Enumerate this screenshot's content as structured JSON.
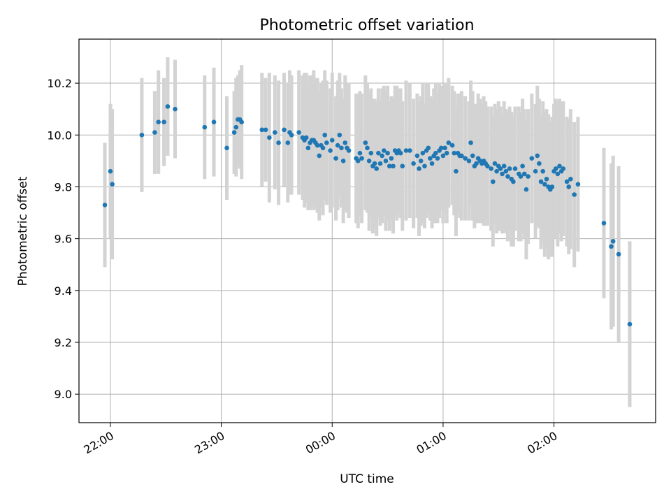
{
  "chart_data": {
    "type": "scatter",
    "title": "Photometric offset variation",
    "xlabel": "UTC time",
    "ylabel": "Photometric offset",
    "x_unit": "UTC clock time (hh:mm)",
    "xlim": [
      "21:43",
      "02:55"
    ],
    "ylim": [
      8.89,
      10.37
    ],
    "xticks": [
      "22:00",
      "23:00",
      "00:00",
      "01:00",
      "02:00"
    ],
    "yticks": [
      "9.0",
      "9.2",
      "9.4",
      "9.6",
      "9.8",
      "10.0",
      "10.2"
    ],
    "grid": true,
    "legend": "none",
    "colors": {
      "point": "#1f77b4",
      "errorbar": "#d3d3d3",
      "grid": "#b0b0b0"
    },
    "series": [
      {
        "points": [
          {
            "x": "21:57",
            "y": 9.73,
            "err": 0.24
          },
          {
            "x": "22:00",
            "y": 9.86,
            "err": 0.26
          },
          {
            "x": "22:01",
            "y": 9.81,
            "err": 0.29
          },
          {
            "x": "22:17",
            "y": 10.0,
            "err": 0.22
          },
          {
            "x": "22:24",
            "y": 10.01,
            "err": 0.16
          },
          {
            "x": "22:26",
            "y": 10.05,
            "err": 0.2
          },
          {
            "x": "22:29",
            "y": 10.05,
            "err": 0.17
          },
          {
            "x": "22:31",
            "y": 10.11,
            "err": 0.19
          },
          {
            "x": "22:35",
            "y": 10.1,
            "err": 0.19
          },
          {
            "x": "22:51",
            "y": 10.03,
            "err": 0.2
          },
          {
            "x": "22:56",
            "y": 10.05,
            "err": 0.21
          },
          {
            "x": "23:03",
            "y": 9.95,
            "err": 0.2
          },
          {
            "x": "23:07",
            "y": 10.01,
            "err": 0.16
          },
          {
            "x": "23:08",
            "y": 10.03,
            "err": 0.19
          },
          {
            "x": "23:09",
            "y": 10.06,
            "err": 0.17
          },
          {
            "x": "23:10",
            "y": 10.06,
            "err": 0.19
          },
          {
            "x": "23:11",
            "y": 10.05,
            "err": 0.22
          },
          {
            "x": "23:22",
            "y": 10.02,
            "err": 0.22
          },
          {
            "x": "23:24",
            "y": 10.02,
            "err": 0.2
          },
          {
            "x": "23:26",
            "y": 9.99,
            "err": 0.25
          },
          {
            "x": "23:29",
            "y": 10.01,
            "err": 0.22
          },
          {
            "x": "23:31",
            "y": 9.97,
            "err": 0.24
          },
          {
            "x": "23:34",
            "y": 10.02,
            "err": 0.22
          },
          {
            "x": "23:36",
            "y": 9.97,
            "err": 0.23
          },
          {
            "x": "23:37",
            "y": 10.01,
            "err": 0.24
          },
          {
            "x": "23:38",
            "y": 10.0,
            "err": 0.23
          },
          {
            "x": "23:42",
            "y": 10.01,
            "err": 0.24
          },
          {
            "x": "23:44",
            "y": 9.99,
            "err": 0.24
          },
          {
            "x": "23:45",
            "y": 9.98,
            "err": 0.26
          },
          {
            "x": "23:46",
            "y": 9.99,
            "err": 0.25
          },
          {
            "x": "23:47",
            "y": 9.95,
            "err": 0.24
          },
          {
            "x": "23:48",
            "y": 9.97,
            "err": 0.26
          },
          {
            "x": "23:49",
            "y": 9.98,
            "err": 0.25
          },
          {
            "x": "23:50",
            "y": 9.98,
            "err": 0.27
          },
          {
            "x": "23:51",
            "y": 9.97,
            "err": 0.25
          },
          {
            "x": "23:52",
            "y": 9.96,
            "err": 0.26
          },
          {
            "x": "23:53",
            "y": 9.92,
            "err": 0.25
          },
          {
            "x": "23:54",
            "y": 9.96,
            "err": 0.24
          },
          {
            "x": "23:55",
            "y": 9.95,
            "err": 0.26
          },
          {
            "x": "23:56",
            "y": 10.0,
            "err": 0.25
          },
          {
            "x": "23:57",
            "y": 9.97,
            "err": 0.24
          },
          {
            "x": "23:59",
            "y": 9.94,
            "err": 0.24
          },
          {
            "x": "00:00",
            "y": 9.98,
            "err": 0.26
          },
          {
            "x": "00:02",
            "y": 9.91,
            "err": 0.24
          },
          {
            "x": "00:03",
            "y": 9.96,
            "err": 0.25
          },
          {
            "x": "00:04",
            "y": 10.0,
            "err": 0.24
          },
          {
            "x": "00:05",
            "y": 9.95,
            "err": 0.23
          },
          {
            "x": "00:06",
            "y": 9.9,
            "err": 0.24
          },
          {
            "x": "00:07",
            "y": 9.97,
            "err": 0.26
          },
          {
            "x": "00:08",
            "y": 9.95,
            "err": 0.25
          },
          {
            "x": "00:09",
            "y": 9.94,
            "err": 0.26
          },
          {
            "x": "00:13",
            "y": 9.91,
            "err": 0.25
          },
          {
            "x": "00:14",
            "y": 9.9,
            "err": 0.26
          },
          {
            "x": "00:15",
            "y": 9.93,
            "err": 0.24
          },
          {
            "x": "00:16",
            "y": 9.91,
            "err": 0.25
          },
          {
            "x": "00:18",
            "y": 9.97,
            "err": 0.26
          },
          {
            "x": "00:19",
            "y": 9.95,
            "err": 0.25
          },
          {
            "x": "00:20",
            "y": 9.9,
            "err": 0.27
          },
          {
            "x": "00:21",
            "y": 9.93,
            "err": 0.25
          },
          {
            "x": "00:22",
            "y": 9.88,
            "err": 0.26
          },
          {
            "x": "00:23",
            "y": 9.89,
            "err": 0.25
          },
          {
            "x": "00:24",
            "y": 9.87,
            "err": 0.26
          },
          {
            "x": "00:25",
            "y": 9.93,
            "err": 0.25
          },
          {
            "x": "00:26",
            "y": 9.89,
            "err": 0.24
          },
          {
            "x": "00:27",
            "y": 9.92,
            "err": 0.26
          },
          {
            "x": "00:28",
            "y": 9.94,
            "err": 0.25
          },
          {
            "x": "00:29",
            "y": 9.9,
            "err": 0.27
          },
          {
            "x": "00:30",
            "y": 9.93,
            "err": 0.26
          },
          {
            "x": "00:31",
            "y": 9.88,
            "err": 0.25
          },
          {
            "x": "00:32",
            "y": 9.91,
            "err": 0.24
          },
          {
            "x": "00:33",
            "y": 9.88,
            "err": 0.26
          },
          {
            "x": "00:34",
            "y": 9.94,
            "err": 0.25
          },
          {
            "x": "00:35",
            "y": 9.93,
            "err": 0.26
          },
          {
            "x": "00:36",
            "y": 9.94,
            "err": 0.24
          },
          {
            "x": "00:37",
            "y": 9.93,
            "err": 0.25
          },
          {
            "x": "00:38",
            "y": 9.88,
            "err": 0.25
          },
          {
            "x": "00:40",
            "y": 9.94,
            "err": 0.27
          },
          {
            "x": "00:42",
            "y": 9.94,
            "err": 0.26
          },
          {
            "x": "00:44",
            "y": 9.89,
            "err": 0.25
          },
          {
            "x": "00:46",
            "y": 9.92,
            "err": 0.24
          },
          {
            "x": "00:47",
            "y": 9.87,
            "err": 0.26
          },
          {
            "x": "00:48",
            "y": 9.9,
            "err": 0.25
          },
          {
            "x": "00:49",
            "y": 9.93,
            "err": 0.27
          },
          {
            "x": "00:50",
            "y": 9.88,
            "err": 0.24
          },
          {
            "x": "00:51",
            "y": 9.94,
            "err": 0.26
          },
          {
            "x": "00:52",
            "y": 9.95,
            "err": 0.25
          },
          {
            "x": "00:53",
            "y": 9.91,
            "err": 0.24
          },
          {
            "x": "00:54",
            "y": 9.89,
            "err": 0.25
          },
          {
            "x": "00:55",
            "y": 9.92,
            "err": 0.26
          },
          {
            "x": "00:56",
            "y": 9.93,
            "err": 0.27
          },
          {
            "x": "00:57",
            "y": 9.91,
            "err": 0.25
          },
          {
            "x": "00:58",
            "y": 9.94,
            "err": 0.26
          },
          {
            "x": "00:59",
            "y": 9.95,
            "err": 0.24
          },
          {
            "x": "01:00",
            "y": 9.92,
            "err": 0.26
          },
          {
            "x": "01:01",
            "y": 9.95,
            "err": 0.25
          },
          {
            "x": "01:02",
            "y": 9.93,
            "err": 0.27
          },
          {
            "x": "01:03",
            "y": 9.97,
            "err": 0.25
          },
          {
            "x": "01:05",
            "y": 9.96,
            "err": 0.23
          },
          {
            "x": "01:06",
            "y": 9.93,
            "err": 0.24
          },
          {
            "x": "01:07",
            "y": 9.86,
            "err": 0.25
          },
          {
            "x": "01:08",
            "y": 9.93,
            "err": 0.23
          },
          {
            "x": "01:09",
            "y": 9.92,
            "err": 0.24
          },
          {
            "x": "01:10",
            "y": 9.92,
            "err": 0.25
          },
          {
            "x": "01:12",
            "y": 9.91,
            "err": 0.24
          },
          {
            "x": "01:14",
            "y": 9.9,
            "err": 0.23
          },
          {
            "x": "01:15",
            "y": 9.97,
            "err": 0.24
          },
          {
            "x": "01:16",
            "y": 9.92,
            "err": 0.25
          },
          {
            "x": "01:17",
            "y": 9.88,
            "err": 0.24
          },
          {
            "x": "01:18",
            "y": 9.89,
            "err": 0.23
          },
          {
            "x": "01:19",
            "y": 9.91,
            "err": 0.25
          },
          {
            "x": "01:20",
            "y": 9.9,
            "err": 0.24
          },
          {
            "x": "01:21",
            "y": 9.89,
            "err": 0.23
          },
          {
            "x": "01:22",
            "y": 9.9,
            "err": 0.25
          },
          {
            "x": "01:23",
            "y": 9.89,
            "err": 0.24
          },
          {
            "x": "01:24",
            "y": 9.88,
            "err": 0.23
          },
          {
            "x": "01:26",
            "y": 9.87,
            "err": 0.24
          },
          {
            "x": "01:27",
            "y": 9.82,
            "err": 0.25
          },
          {
            "x": "01:28",
            "y": 9.89,
            "err": 0.23
          },
          {
            "x": "01:29",
            "y": 9.86,
            "err": 0.24
          },
          {
            "x": "01:30",
            "y": 9.88,
            "err": 0.25
          },
          {
            "x": "01:31",
            "y": 9.87,
            "err": 0.24
          },
          {
            "x": "01:32",
            "y": 9.85,
            "err": 0.23
          },
          {
            "x": "01:33",
            "y": 9.88,
            "err": 0.25
          },
          {
            "x": "01:34",
            "y": 9.86,
            "err": 0.24
          },
          {
            "x": "01:35",
            "y": 9.84,
            "err": 0.25
          },
          {
            "x": "01:36",
            "y": 9.87,
            "err": 0.24
          },
          {
            "x": "01:37",
            "y": 9.83,
            "err": 0.26
          },
          {
            "x": "01:38",
            "y": 9.82,
            "err": 0.25
          },
          {
            "x": "01:39",
            "y": 9.87,
            "err": 0.24
          },
          {
            "x": "01:41",
            "y": 9.85,
            "err": 0.26
          },
          {
            "x": "01:42",
            "y": 9.84,
            "err": 0.25
          },
          {
            "x": "01:43",
            "y": 9.88,
            "err": 0.26
          },
          {
            "x": "01:44",
            "y": 9.85,
            "err": 0.25
          },
          {
            "x": "01:45",
            "y": 9.79,
            "err": 0.27
          },
          {
            "x": "01:46",
            "y": 9.84,
            "err": 0.26
          },
          {
            "x": "01:48",
            "y": 9.91,
            "err": 0.25
          },
          {
            "x": "01:50",
            "y": 9.86,
            "err": 0.26
          },
          {
            "x": "01:51",
            "y": 9.92,
            "err": 0.27
          },
          {
            "x": "01:52",
            "y": 9.89,
            "err": 0.25
          },
          {
            "x": "01:53",
            "y": 9.82,
            "err": 0.26
          },
          {
            "x": "01:54",
            "y": 9.86,
            "err": 0.27
          },
          {
            "x": "01:55",
            "y": 9.81,
            "err": 0.28
          },
          {
            "x": "01:56",
            "y": 9.83,
            "err": 0.27
          },
          {
            "x": "01:57",
            "y": 9.8,
            "err": 0.28
          },
          {
            "x": "01:58",
            "y": 9.79,
            "err": 0.26
          },
          {
            "x": "01:59",
            "y": 9.8,
            "err": 0.27
          },
          {
            "x": "02:00",
            "y": 9.86,
            "err": 0.26
          },
          {
            "x": "02:01",
            "y": 9.87,
            "err": 0.27
          },
          {
            "x": "02:02",
            "y": 9.85,
            "err": 0.28
          },
          {
            "x": "02:03",
            "y": 9.88,
            "err": 0.26
          },
          {
            "x": "02:04",
            "y": 9.86,
            "err": 0.27
          },
          {
            "x": "02:05",
            "y": 9.87,
            "err": 0.26
          },
          {
            "x": "02:07",
            "y": 9.82,
            "err": 0.25
          },
          {
            "x": "02:08",
            "y": 9.8,
            "err": 0.26
          },
          {
            "x": "02:09",
            "y": 9.83,
            "err": 0.27
          },
          {
            "x": "02:11",
            "y": 9.77,
            "err": 0.28
          },
          {
            "x": "02:13",
            "y": 9.81,
            "err": 0.26
          },
          {
            "x": "02:27",
            "y": 9.66,
            "err": 0.29
          },
          {
            "x": "02:31",
            "y": 9.57,
            "err": 0.32
          },
          {
            "x": "02:32",
            "y": 9.59,
            "err": 0.33
          },
          {
            "x": "02:35",
            "y": 9.54,
            "err": 0.34
          },
          {
            "x": "02:41",
            "y": 9.27,
            "err": 0.32
          }
        ]
      }
    ]
  }
}
